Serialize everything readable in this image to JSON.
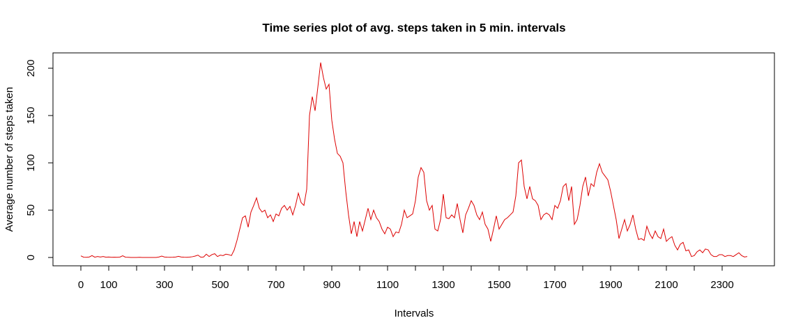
{
  "chart_data": {
    "type": "line",
    "title": "Time series plot of avg. steps taken in 5 min. intervals",
    "x_label": "Intervals",
    "y_label": "Average number of steps taken",
    "x": [
      0,
      10,
      20,
      30,
      40,
      50,
      60,
      70,
      80,
      90,
      100,
      110,
      120,
      130,
      140,
      150,
      160,
      170,
      180,
      190,
      200,
      210,
      220,
      230,
      240,
      250,
      260,
      270,
      280,
      290,
      300,
      310,
      320,
      330,
      340,
      350,
      360,
      370,
      380,
      390,
      400,
      410,
      420,
      430,
      440,
      450,
      460,
      470,
      480,
      490,
      500,
      510,
      520,
      530,
      540,
      550,
      560,
      570,
      580,
      590,
      600,
      610,
      620,
      630,
      640,
      650,
      660,
      670,
      680,
      690,
      700,
      710,
      720,
      730,
      740,
      750,
      760,
      770,
      780,
      790,
      800,
      810,
      820,
      830,
      840,
      850,
      860,
      870,
      880,
      890,
      900,
      910,
      920,
      930,
      940,
      950,
      960,
      970,
      980,
      990,
      1000,
      1010,
      1020,
      1030,
      1040,
      1050,
      1060,
      1070,
      1080,
      1090,
      1100,
      1110,
      1120,
      1130,
      1140,
      1150,
      1160,
      1170,
      1180,
      1190,
      1200,
      1210,
      1220,
      1230,
      1240,
      1250,
      1260,
      1270,
      1280,
      1290,
      1300,
      1310,
      1320,
      1330,
      1340,
      1350,
      1360,
      1370,
      1380,
      1390,
      1400,
      1410,
      1420,
      1430,
      1440,
      1450,
      1460,
      1470,
      1480,
      1490,
      1500,
      1510,
      1520,
      1530,
      1540,
      1550,
      1560,
      1570,
      1580,
      1590,
      1600,
      1610,
      1620,
      1630,
      1640,
      1650,
      1660,
      1670,
      1680,
      1690,
      1700,
      1710,
      1720,
      1730,
      1740,
      1750,
      1760,
      1770,
      1780,
      1790,
      1800,
      1810,
      1820,
      1830,
      1840,
      1850,
      1860,
      1870,
      1880,
      1890,
      1900,
      1910,
      1920,
      1930,
      1940,
      1950,
      1960,
      1970,
      1980,
      1990,
      2000,
      2010,
      2020,
      2030,
      2040,
      2050,
      2060,
      2070,
      2080,
      2090,
      2100,
      2110,
      2120,
      2130,
      2140,
      2150,
      2160,
      2170,
      2180,
      2190,
      2200,
      2210,
      2220,
      2230,
      2240,
      2250,
      2260,
      2270,
      2280,
      2290,
      2300,
      2310,
      2320,
      2330,
      2340,
      2350,
      2360,
      2370,
      2380,
      2390
    ],
    "series": [
      {
        "color": "#dd0000",
        "values": [
          1.7,
          0.3,
          0.2,
          0.5,
          2,
          0.3,
          1,
          0.5,
          1,
          0.3,
          0.5,
          0.2,
          0.3,
          0.2,
          0.4,
          1.8,
          0.3,
          0.2,
          0,
          0,
          0,
          0.2,
          0,
          0,
          0,
          0,
          0,
          0,
          0.5,
          1.5,
          0.5,
          0.3,
          0.2,
          0.3,
          0.5,
          1.2,
          0.5,
          0.3,
          0.2,
          0.4,
          0.8,
          1.5,
          2.5,
          0.3,
          0.5,
          3.5,
          1,
          3,
          4,
          1,
          2.5,
          2,
          3.5,
          3,
          2,
          8,
          18,
          30,
          42,
          44,
          32,
          48,
          55,
          63,
          52,
          48,
          50,
          42,
          45,
          38,
          46,
          44,
          52,
          55,
          50,
          54,
          45,
          55,
          68,
          58,
          55,
          72,
          150,
          170,
          155,
          180,
          206,
          190,
          178,
          183,
          145,
          125,
          110,
          107,
          100,
          70,
          45,
          25,
          38,
          22,
          38,
          28,
          40,
          52,
          40,
          50,
          42,
          38,
          30,
          25,
          32,
          30,
          22,
          27,
          26,
          35,
          50,
          42,
          44,
          46,
          60,
          85,
          95,
          90,
          60,
          50,
          55,
          30,
          28,
          40,
          67,
          42,
          41,
          45,
          42,
          57,
          40,
          26,
          45,
          52,
          60,
          55,
          45,
          40,
          48,
          35,
          30,
          17,
          30,
          44,
          30,
          35,
          40,
          42,
          45,
          48,
          65,
          100,
          103,
          75,
          62,
          75,
          62,
          60,
          55,
          40,
          45,
          47,
          45,
          40,
          55,
          52,
          60,
          75,
          78,
          60,
          75,
          35,
          40,
          55,
          75,
          85,
          65,
          78,
          75,
          90,
          99,
          90,
          86,
          82,
          70,
          55,
          40,
          20,
          30,
          40,
          28,
          35,
          45,
          30,
          19,
          20,
          18,
          33,
          25,
          20,
          28,
          22,
          20,
          30,
          17,
          20,
          22,
          13,
          8,
          14,
          16,
          7,
          8,
          1,
          2,
          6,
          8,
          5,
          9,
          8,
          3,
          1,
          1,
          3,
          3,
          1,
          2,
          2,
          1,
          3,
          5,
          2,
          0.5,
          1
        ]
      }
    ],
    "xlim": [
      -100,
      2487.5
    ],
    "ylim": [
      -8.8,
      216.2
    ],
    "xticks": [
      0,
      100,
      300,
      500,
      700,
      900,
      1100,
      1300,
      1500,
      1700,
      1900,
      2100,
      2300
    ],
    "xticks_unlabeled": [
      200,
      400,
      600,
      800,
      1000,
      1200,
      1400,
      1600,
      1800,
      2000,
      2200
    ],
    "yticks": [
      0,
      50,
      100,
      150,
      200
    ]
  }
}
